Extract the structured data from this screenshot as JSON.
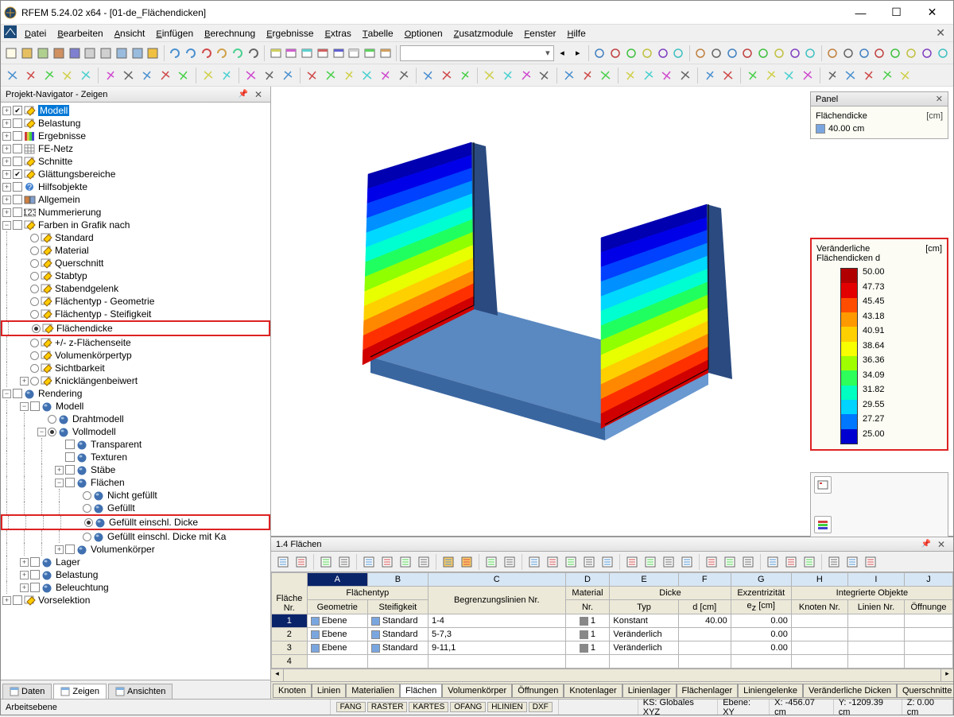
{
  "app": {
    "title": "RFEM 5.24.02 x64 - [01-de_Flächendicken]"
  },
  "menu": [
    "Datei",
    "Bearbeiten",
    "Ansicht",
    "Einfügen",
    "Berechnung",
    "Ergebnisse",
    "Extras",
    "Tabelle",
    "Optionen",
    "Zusatzmodule",
    "Fenster",
    "Hilfe"
  ],
  "navigator": {
    "title": "Projekt-Navigator - Zeigen",
    "tabs": [
      {
        "label": "Daten",
        "active": false
      },
      {
        "label": "Zeigen",
        "active": true
      },
      {
        "label": "Ansichten",
        "active": false
      }
    ]
  },
  "tree": [
    {
      "d": 0,
      "exp": "+",
      "chk": "on",
      "ico": "pencil",
      "label": "Modell",
      "sel": true
    },
    {
      "d": 0,
      "exp": "+",
      "chk": "off",
      "ico": "pencil",
      "label": "Belastung"
    },
    {
      "d": 0,
      "exp": "+",
      "chk": "off",
      "ico": "rainbow",
      "label": "Ergebnisse"
    },
    {
      "d": 0,
      "exp": "+",
      "chk": "off",
      "ico": "mesh",
      "label": "FE-Netz"
    },
    {
      "d": 0,
      "exp": "+",
      "chk": "off",
      "ico": "pencil",
      "label": "Schnitte"
    },
    {
      "d": 0,
      "exp": "+",
      "chk": "on",
      "ico": "pencil",
      "label": "Glättungsbereiche"
    },
    {
      "d": 0,
      "exp": "+",
      "chk": "off",
      "ico": "help",
      "label": "Hilfsobjekte"
    },
    {
      "d": 0,
      "exp": "+",
      "chk": "off",
      "ico": "gen",
      "label": "Allgemein"
    },
    {
      "d": 0,
      "exp": "+",
      "chk": "off",
      "ico": "num",
      "label": "Nummerierung"
    },
    {
      "d": 0,
      "exp": "-",
      "chk": "off",
      "ico": "pencil",
      "label": "Farben in Grafik nach"
    },
    {
      "d": 1,
      "rad": "off",
      "ico": "pencil",
      "label": "Standard"
    },
    {
      "d": 1,
      "rad": "off",
      "ico": "pencil",
      "label": "Material"
    },
    {
      "d": 1,
      "rad": "off",
      "ico": "pencil",
      "label": "Querschnitt"
    },
    {
      "d": 1,
      "rad": "off",
      "ico": "pencil",
      "label": "Stabtyp"
    },
    {
      "d": 1,
      "rad": "off",
      "ico": "pencil",
      "label": "Stabendgelenk"
    },
    {
      "d": 1,
      "rad": "off",
      "ico": "pencil",
      "label": "Flächentyp - Geometrie"
    },
    {
      "d": 1,
      "rad": "off",
      "ico": "pencil",
      "label": "Flächentyp - Steifigkeit"
    },
    {
      "d": 1,
      "rad": "on",
      "ico": "pencil",
      "label": "Flächendicke",
      "hl": true
    },
    {
      "d": 1,
      "rad": "off",
      "ico": "pencil",
      "label": "+/- z-Flächenseite"
    },
    {
      "d": 1,
      "rad": "off",
      "ico": "pencil",
      "label": "Volumenkörpertyp"
    },
    {
      "d": 1,
      "rad": "off",
      "ico": "pencil",
      "label": "Sichtbarkeit"
    },
    {
      "d": 1,
      "exp": "+",
      "rad": "off",
      "ico": "pencil",
      "label": "Knicklängenbeiwert"
    },
    {
      "d": 0,
      "exp": "-",
      "chk": "off",
      "ico": "sphere",
      "label": "Rendering"
    },
    {
      "d": 1,
      "exp": "-",
      "chk": "off",
      "ico": "sphere",
      "label": "Modell"
    },
    {
      "d": 2,
      "rad": "off",
      "ico": "sphere",
      "label": "Drahtmodell"
    },
    {
      "d": 2,
      "exp": "-",
      "rad": "on",
      "ico": "sphere",
      "label": "Vollmodell"
    },
    {
      "d": 3,
      "chk": "off",
      "ico": "sphere",
      "label": "Transparent"
    },
    {
      "d": 3,
      "chk": "off",
      "ico": "sphere",
      "label": "Texturen"
    },
    {
      "d": 3,
      "exp": "+",
      "chk": "off",
      "ico": "sphere",
      "label": "Stäbe"
    },
    {
      "d": 3,
      "exp": "-",
      "chk": "off",
      "ico": "sphere",
      "label": "Flächen"
    },
    {
      "d": 4,
      "rad": "off",
      "ico": "sphere",
      "label": "Nicht gefüllt"
    },
    {
      "d": 4,
      "rad": "off",
      "ico": "sphere",
      "label": "Gefüllt"
    },
    {
      "d": 4,
      "rad": "on",
      "ico": "sphere",
      "label": "Gefüllt einschl. Dicke",
      "hl": true
    },
    {
      "d": 4,
      "rad": "off",
      "ico": "sphere",
      "label": "Gefüllt einschl. Dicke mit Ka"
    },
    {
      "d": 3,
      "exp": "+",
      "chk": "off",
      "ico": "sphere",
      "label": "Volumenkörper"
    },
    {
      "d": 1,
      "exp": "+",
      "chk": "off",
      "ico": "sphere",
      "label": "Lager"
    },
    {
      "d": 1,
      "exp": "+",
      "chk": "off",
      "ico": "sphere",
      "label": "Belastung"
    },
    {
      "d": 1,
      "exp": "+",
      "chk": "off",
      "ico": "sphere",
      "label": "Beleuchtung"
    },
    {
      "d": 0,
      "exp": "+",
      "chk": "off",
      "ico": "pencil",
      "label": "Vorselektion"
    }
  ],
  "panel": {
    "title": "Panel",
    "block1_title": "Flächendicke",
    "unit": "[cm]",
    "thickness_value": "40.00 cm",
    "thickness_color": "#7aa6e0"
  },
  "legend": {
    "title": "Veränderliche Flächendicken d",
    "unit": "[cm]",
    "colors": [
      "#b10000",
      "#e30000",
      "#ff4d00",
      "#ff9900",
      "#ffd000",
      "#f7ff00",
      "#9fff00",
      "#2eff5a",
      "#00ffc0",
      "#00d4ff",
      "#0077ff",
      "#0000d0"
    ],
    "values": [
      "50.00",
      "47.73",
      "45.45",
      "43.18",
      "40.91",
      "38.64",
      "36.36",
      "34.09",
      "31.82",
      "29.55",
      "27.27",
      "25.00"
    ]
  },
  "table": {
    "title": "1.4 Flächen",
    "col_groups": [
      "",
      "Flächentyp",
      "",
      "",
      "Dicke",
      "",
      "Integrierte Objekte"
    ],
    "col_letters": [
      "A",
      "B",
      "C",
      "D",
      "E",
      "F",
      "G",
      "H",
      "I",
      "J"
    ],
    "headers": [
      "Fläche Nr.",
      "Geometrie",
      "Steifigkeit",
      "Begrenzungslinien Nr.",
      "Material Nr.",
      "Typ",
      "d [cm]",
      "Exzentrizität e_z [cm]",
      "Knoten Nr.",
      "Linien Nr.",
      "Öffnunge"
    ],
    "rows": [
      {
        "nr": "1",
        "geo": "Ebene",
        "stf": "Standard",
        "lines": "1-4",
        "mat": "1",
        "typ": "Konstant",
        "d": "40.00",
        "ez": "0.00"
      },
      {
        "nr": "2",
        "geo": "Ebene",
        "stf": "Standard",
        "lines": "5-7,3",
        "mat": "1",
        "typ": "Veränderlich",
        "d": "",
        "ez": "0.00"
      },
      {
        "nr": "3",
        "geo": "Ebene",
        "stf": "Standard",
        "lines": "9-11,1",
        "mat": "1",
        "typ": "Veränderlich",
        "d": "",
        "ez": "0.00"
      },
      {
        "nr": "4",
        "geo": "",
        "stf": "",
        "lines": "",
        "mat": "",
        "typ": "",
        "d": "",
        "ez": ""
      }
    ],
    "geo_color": "#7aa6e0",
    "stf_color": "#7aa6e0",
    "mat_color": "#888888",
    "tabs": [
      "Knoten",
      "Linien",
      "Materialien",
      "Flächen",
      "Volumenkörper",
      "Öffnungen",
      "Knotenlager",
      "Linienlager",
      "Flächenlager",
      "Liniengelenke",
      "Veränderliche Dicken",
      "Querschnitte"
    ],
    "active_tab": 3
  },
  "statusbar": {
    "left": "Arbeitsebene",
    "buttons": [
      "FANG",
      "RASTER",
      "KARTES",
      "OFANG",
      "HLINIEN",
      "DXF"
    ],
    "ks": "KS: Globales XYZ",
    "ebene": "Ebene: XY",
    "coords": {
      "x": "X: -456.07 cm",
      "y": "Y: -1209.39 cm",
      "z": "Z: 0.00 cm"
    }
  },
  "model_bands": [
    "#0000b0",
    "#0000e8",
    "#0040ff",
    "#0090ff",
    "#00d8ff",
    "#00ffd0",
    "#20ff60",
    "#90ff00",
    "#e8ff00",
    "#ffd000",
    "#ff8800",
    "#ff3000",
    "#d00000"
  ]
}
